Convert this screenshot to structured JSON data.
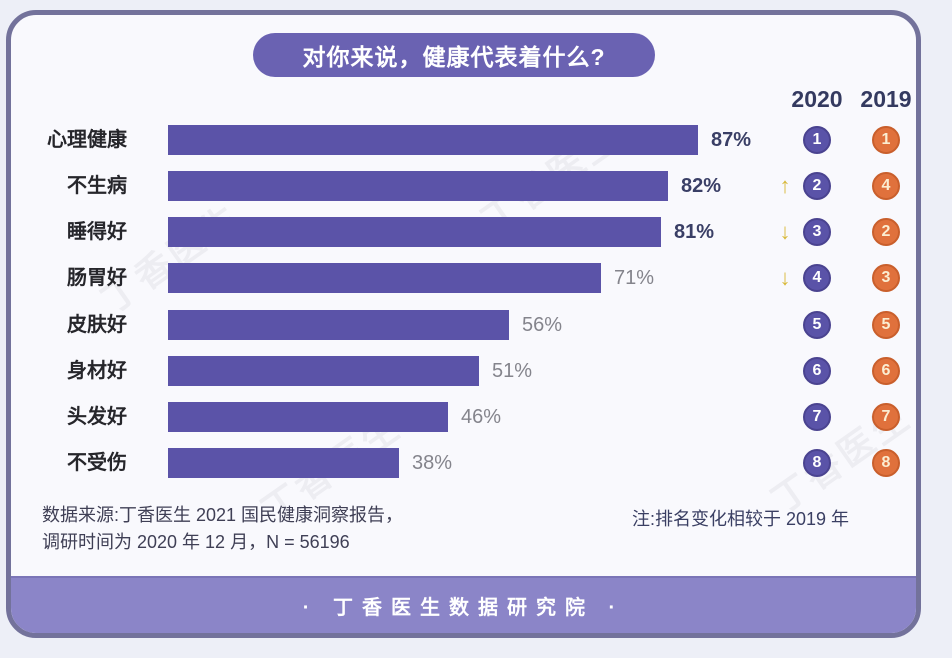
{
  "title": "对你来说，健康代表着什么?",
  "columns": {
    "year_2020": "2020",
    "year_2019": "2019"
  },
  "chart_data": {
    "type": "bar",
    "orientation": "horizontal",
    "title": "对你来说，健康代表着什么?",
    "unit": "%",
    "xlim": [
      0,
      100
    ],
    "categories": [
      "心理健康",
      "不生病",
      "睡得好",
      "肠胃好",
      "皮肤好",
      "身材好",
      "头发好",
      "不受伤"
    ],
    "values": [
      87,
      82,
      81,
      71,
      56,
      51,
      46,
      38
    ],
    "value_labels": [
      "87%",
      "82%",
      "81%",
      "71%",
      "56%",
      "51%",
      "46%",
      "38%"
    ],
    "value_label_style": [
      "dark",
      "dark",
      "dark",
      "muted",
      "muted",
      "muted",
      "muted",
      "muted"
    ],
    "rank_2020": [
      1,
      2,
      3,
      4,
      5,
      6,
      7,
      8
    ],
    "rank_2019": [
      1,
      4,
      2,
      3,
      5,
      6,
      7,
      8
    ],
    "rank_change": [
      "same",
      "up",
      "down",
      "down",
      "same",
      "same",
      "same",
      "same"
    ]
  },
  "footnotes": {
    "source_line1": "数据来源:丁香医生 2021 国民健康洞察报告，",
    "source_line2": "调研时间为 2020 年 12 月，N = 56196",
    "note": "注:排名变化相较于 2019 年"
  },
  "footer": {
    "text": "· 丁香医生数据研究院 ·"
  },
  "watermark": {
    "text": "丁香医生"
  },
  "icons": {
    "up_arrow": "↑",
    "down_arrow": "↓"
  },
  "colors": {
    "bar": "#5b53a8",
    "title_pill": "#6a62b2",
    "badge_2020": "#5a53a8",
    "badge_2019": "#e0713c",
    "arrow": "#d8b93a",
    "footer_band": "#8b85c8",
    "card_border": "#73729b"
  }
}
